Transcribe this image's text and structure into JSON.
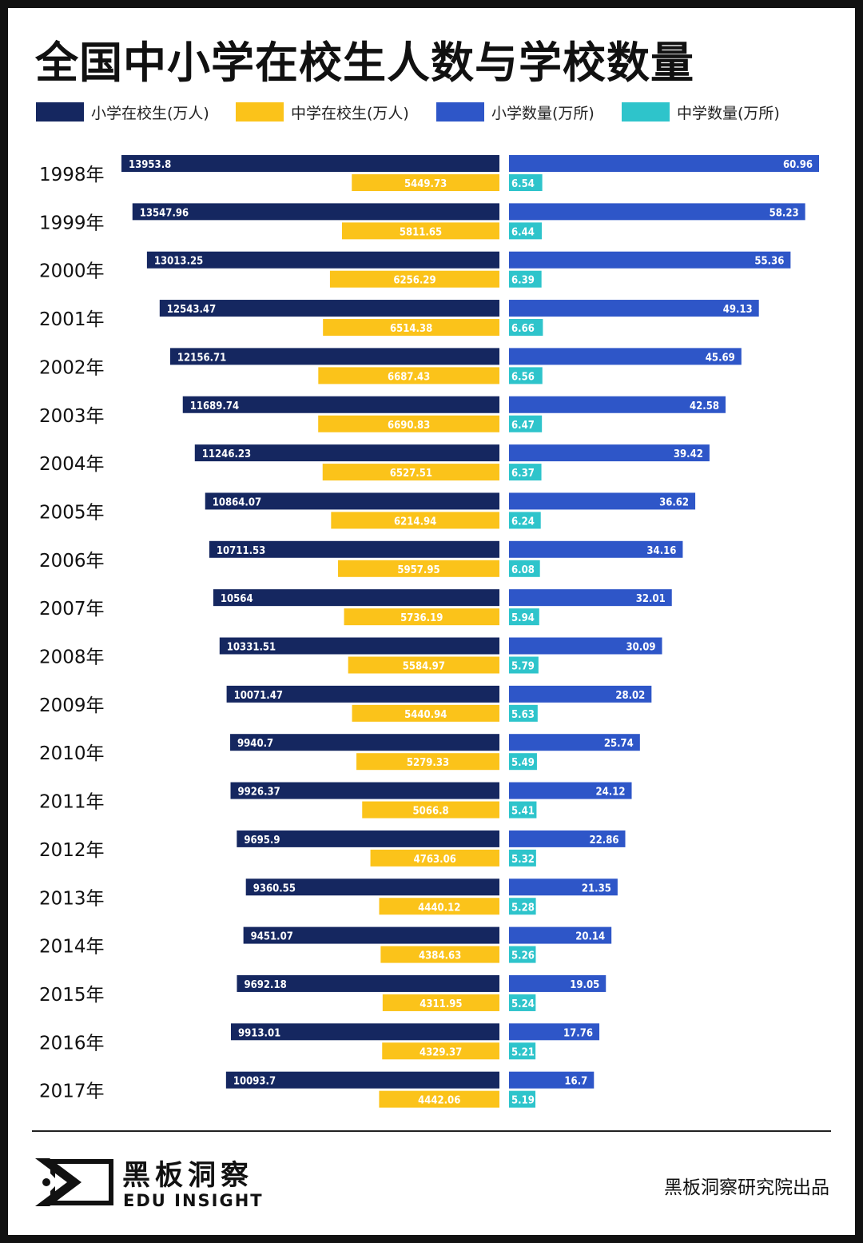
{
  "title": "全国中小学在校生人数与学校数量",
  "legend": [
    {
      "label": "小学在校生(万人)",
      "color": "#152760"
    },
    {
      "label": "中学在校生(万人)",
      "color": "#FBC31A"
    },
    {
      "label": "小学数量(万所)",
      "color": "#2E56C8"
    },
    {
      "label": "中学数量(万所)",
      "color": "#2EC4CB"
    }
  ],
  "chart_data": {
    "type": "bar",
    "orientation": "horizontal",
    "layout": "back-to-back",
    "categories": [
      "1998年",
      "1999年",
      "2000年",
      "2001年",
      "2002年",
      "2003年",
      "2004年",
      "2005年",
      "2006年",
      "2007年",
      "2008年",
      "2009年",
      "2010年",
      "2011年",
      "2012年",
      "2013年",
      "2014年",
      "2015年",
      "2016年",
      "2017年"
    ],
    "series": [
      {
        "name": "小学在校生(万人)",
        "side": "left",
        "color": "#152760",
        "values": [
          13953.8,
          13547.96,
          13013.25,
          12543.47,
          12156.71,
          11689.74,
          11246.23,
          10864.07,
          10711.53,
          10564,
          10331.51,
          10071.47,
          9940.7,
          9926.37,
          9695.9,
          9360.55,
          9451.07,
          9692.18,
          9913.01,
          10093.7
        ]
      },
      {
        "name": "中学在校生(万人)",
        "side": "left",
        "color": "#FBC31A",
        "values": [
          5449.73,
          5811.65,
          6256.29,
          6514.38,
          6687.43,
          6690.83,
          6527.51,
          6214.94,
          5957.95,
          5736.19,
          5584.97,
          5440.94,
          5279.33,
          5066.8,
          4763.06,
          4440.12,
          4384.63,
          4311.95,
          4329.37,
          4442.06
        ]
      },
      {
        "name": "小学数量(万所)",
        "side": "right",
        "color": "#2E56C8",
        "values": [
          60.96,
          58.23,
          55.36,
          49.13,
          45.69,
          42.58,
          39.42,
          36.62,
          34.16,
          32.01,
          30.09,
          28.02,
          25.74,
          24.12,
          22.86,
          21.35,
          20.14,
          19.05,
          17.76,
          16.7
        ]
      },
      {
        "name": "中学数量(万所)",
        "side": "right",
        "color": "#2EC4CB",
        "values": [
          6.54,
          6.44,
          6.39,
          6.66,
          6.56,
          6.47,
          6.37,
          6.24,
          6.08,
          5.94,
          5.79,
          5.63,
          5.49,
          5.41,
          5.32,
          5.28,
          5.26,
          5.24,
          5.21,
          5.19
        ]
      }
    ],
    "title": "全国中小学在校生人数与学校数量",
    "xlabel": "",
    "ylabel": ""
  },
  "footer": {
    "brand_cn": "黑板洞察",
    "brand_en": "EDU INSIGHT",
    "credit": "黑板洞察研究院出品"
  }
}
